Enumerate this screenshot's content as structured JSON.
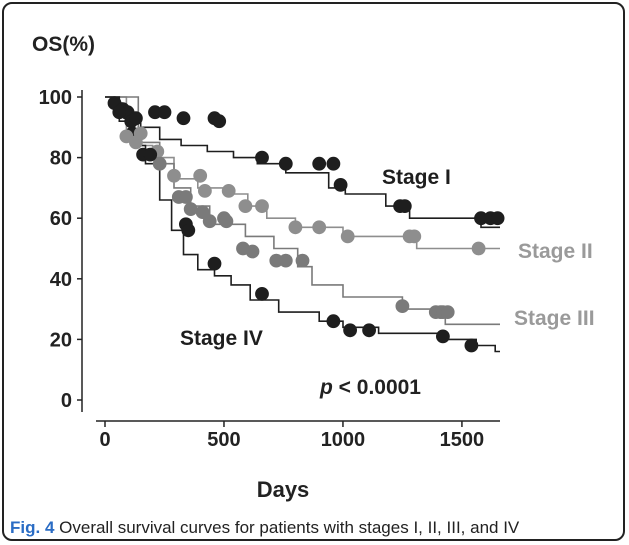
{
  "chart_data": {
    "type": "line",
    "ylabel": "OS(%)",
    "xlabel": "Days",
    "xlim": [
      0,
      1660
    ],
    "ylim": [
      0,
      100
    ],
    "xticks": [
      0,
      500,
      1000,
      1500
    ],
    "yticks": [
      0,
      20,
      40,
      60,
      80,
      100
    ],
    "p_value_label": "< 0.0001",
    "p_value_symbol": "p",
    "series": [
      {
        "name": "Stage I",
        "color": "#1e1e1e",
        "label_color": "#1e1e1e",
        "steps": [
          [
            0,
            100
          ],
          [
            40,
            100
          ],
          [
            40,
            98
          ],
          [
            70,
            98
          ],
          [
            70,
            95
          ],
          [
            80,
            95
          ],
          [
            80,
            93
          ],
          [
            150,
            93
          ],
          [
            150,
            90
          ],
          [
            230,
            90
          ],
          [
            230,
            86
          ],
          [
            320,
            86
          ],
          [
            320,
            84
          ],
          [
            430,
            84
          ],
          [
            430,
            82
          ],
          [
            540,
            82
          ],
          [
            540,
            80
          ],
          [
            640,
            80
          ],
          [
            640,
            78
          ],
          [
            760,
            78
          ],
          [
            760,
            75
          ],
          [
            940,
            75
          ],
          [
            940,
            70
          ],
          [
            1010,
            70
          ],
          [
            1010,
            68
          ],
          [
            1180,
            68
          ],
          [
            1180,
            64
          ],
          [
            1280,
            64
          ],
          [
            1280,
            60
          ],
          [
            1580,
            60
          ],
          [
            1580,
            57
          ],
          [
            1660,
            57
          ]
        ],
        "markers": [
          [
            40,
            98
          ],
          [
            75,
            96
          ],
          [
            95,
            95
          ],
          [
            110,
            92
          ],
          [
            115,
            88
          ],
          [
            130,
            93
          ],
          [
            210,
            95
          ],
          [
            250,
            95
          ],
          [
            330,
            93
          ],
          [
            460,
            93
          ],
          [
            480,
            92
          ],
          [
            660,
            80
          ],
          [
            760,
            78
          ],
          [
            900,
            78
          ],
          [
            960,
            78
          ],
          [
            990,
            71
          ],
          [
            1240,
            64
          ],
          [
            1260,
            64
          ],
          [
            1580,
            60
          ],
          [
            1620,
            60
          ],
          [
            1650,
            60
          ]
        ]
      },
      {
        "name": "Stage II",
        "color": "#8e8e8e",
        "label_color": "#9a9a9a",
        "steps": [
          [
            0,
            100
          ],
          [
            90,
            100
          ],
          [
            90,
            89
          ],
          [
            130,
            89
          ],
          [
            130,
            84
          ],
          [
            200,
            84
          ],
          [
            200,
            80
          ],
          [
            290,
            80
          ],
          [
            290,
            73
          ],
          [
            390,
            73
          ],
          [
            390,
            70
          ],
          [
            510,
            70
          ],
          [
            510,
            68
          ],
          [
            600,
            68
          ],
          [
            600,
            64
          ],
          [
            680,
            64
          ],
          [
            680,
            60
          ],
          [
            800,
            60
          ],
          [
            800,
            57
          ],
          [
            1000,
            57
          ],
          [
            1000,
            54
          ],
          [
            1310,
            54
          ],
          [
            1310,
            50
          ],
          [
            1660,
            50
          ]
        ],
        "markers": [
          [
            90,
            87
          ],
          [
            130,
            85
          ],
          [
            150,
            88
          ],
          [
            220,
            82
          ],
          [
            290,
            74
          ],
          [
            400,
            74
          ],
          [
            420,
            69
          ],
          [
            520,
            69
          ],
          [
            590,
            64
          ],
          [
            660,
            64
          ],
          [
            800,
            57
          ],
          [
            900,
            57
          ],
          [
            1020,
            54
          ],
          [
            1280,
            54
          ],
          [
            1300,
            54
          ],
          [
            1570,
            50
          ]
        ]
      },
      {
        "name": "Stage III",
        "color": "#7a7a7a",
        "label_color": "#9a9a9a",
        "steps": [
          [
            0,
            100
          ],
          [
            140,
            100
          ],
          [
            140,
            85
          ],
          [
            230,
            85
          ],
          [
            230,
            78
          ],
          [
            290,
            78
          ],
          [
            290,
            70
          ],
          [
            360,
            70
          ],
          [
            360,
            64
          ],
          [
            440,
            64
          ],
          [
            440,
            58
          ],
          [
            590,
            58
          ],
          [
            590,
            54
          ],
          [
            710,
            54
          ],
          [
            710,
            50
          ],
          [
            810,
            50
          ],
          [
            810,
            44
          ],
          [
            870,
            44
          ],
          [
            870,
            38
          ],
          [
            1000,
            38
          ],
          [
            1000,
            34
          ],
          [
            1250,
            34
          ],
          [
            1250,
            30
          ],
          [
            1430,
            30
          ],
          [
            1430,
            25
          ],
          [
            1660,
            25
          ]
        ],
        "markers": [
          [
            230,
            78
          ],
          [
            310,
            67
          ],
          [
            340,
            67
          ],
          [
            360,
            63
          ],
          [
            410,
            62
          ],
          [
            440,
            59
          ],
          [
            500,
            60
          ],
          [
            510,
            59
          ],
          [
            580,
            50
          ],
          [
            620,
            49
          ],
          [
            720,
            46
          ],
          [
            760,
            46
          ],
          [
            830,
            46
          ],
          [
            1250,
            31
          ],
          [
            1390,
            29
          ],
          [
            1410,
            29
          ],
          [
            1420,
            29
          ],
          [
            1440,
            29
          ]
        ]
      },
      {
        "name": "Stage IV",
        "color": "#1e1e1e",
        "label_color": "#1e1e1e",
        "steps": [
          [
            0,
            100
          ],
          [
            60,
            100
          ],
          [
            60,
            92
          ],
          [
            120,
            92
          ],
          [
            120,
            84
          ],
          [
            170,
            84
          ],
          [
            170,
            78
          ],
          [
            230,
            78
          ],
          [
            230,
            66
          ],
          [
            280,
            66
          ],
          [
            280,
            56
          ],
          [
            330,
            56
          ],
          [
            330,
            48
          ],
          [
            390,
            48
          ],
          [
            390,
            43
          ],
          [
            460,
            43
          ],
          [
            460,
            41
          ],
          [
            530,
            41
          ],
          [
            530,
            38
          ],
          [
            610,
            38
          ],
          [
            610,
            33
          ],
          [
            730,
            33
          ],
          [
            730,
            29
          ],
          [
            900,
            29
          ],
          [
            900,
            26
          ],
          [
            1000,
            26
          ],
          [
            1000,
            24
          ],
          [
            1150,
            24
          ],
          [
            1150,
            22
          ],
          [
            1400,
            22
          ],
          [
            1400,
            20
          ],
          [
            1560,
            20
          ],
          [
            1560,
            18
          ],
          [
            1640,
            18
          ],
          [
            1640,
            16
          ],
          [
            1660,
            16
          ]
        ],
        "markers": [
          [
            60,
            95
          ],
          [
            160,
            81
          ],
          [
            190,
            81
          ],
          [
            340,
            58
          ],
          [
            350,
            56
          ],
          [
            460,
            45
          ],
          [
            660,
            35
          ],
          [
            960,
            26
          ],
          [
            1030,
            23
          ],
          [
            1110,
            23
          ],
          [
            1420,
            21
          ],
          [
            1540,
            18
          ]
        ]
      }
    ]
  },
  "caption": {
    "fig": "Fig. 4",
    "text": "Overall survival curves for patients with stages I, II, III, and IV"
  }
}
